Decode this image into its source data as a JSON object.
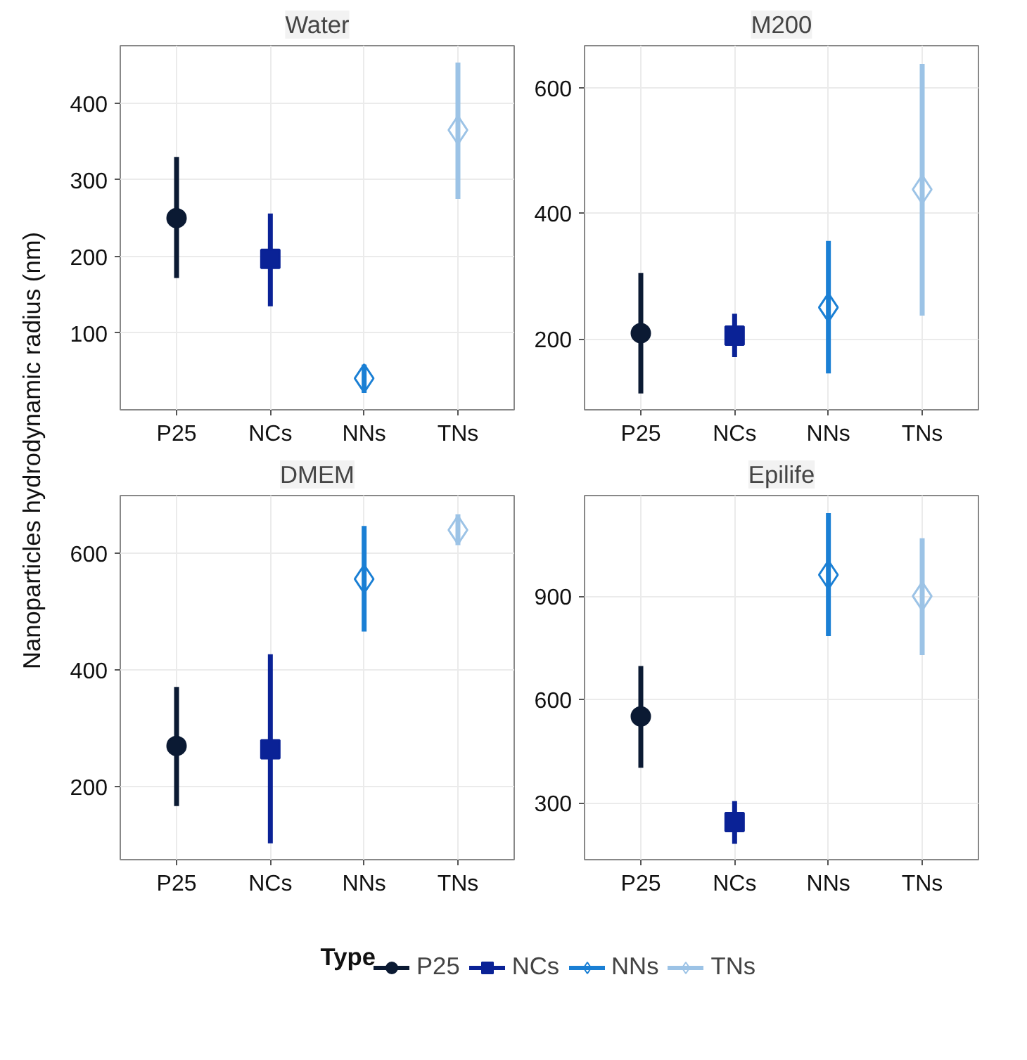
{
  "chart_data": [
    {
      "type": "scatter",
      "title": "Water",
      "ylabel": "Nanoparticles hydrodynamic radius (nm)",
      "legend_title": "Type",
      "legend": "bottom",
      "grid": true,
      "categories": [
        "P25",
        "NCs",
        "NNs",
        "TNs"
      ],
      "ylim": [
        0,
        475
      ],
      "yticks": [
        100,
        200,
        300,
        400
      ],
      "series": [
        {
          "name": "P25",
          "color": "#0b1a33",
          "marker": "circle",
          "values": [
            250,
            null,
            null,
            null
          ],
          "errors": [
            [
              172,
              330
            ],
            null,
            null,
            null
          ]
        },
        {
          "name": "NCs",
          "color": "#0a2296",
          "marker": "square",
          "values": [
            null,
            197,
            null,
            null
          ],
          "errors": [
            null,
            [
              135,
              256
            ],
            null,
            null
          ]
        },
        {
          "name": "NNs",
          "color": "#1a7fd4",
          "marker": "diamond",
          "values": [
            null,
            null,
            41,
            null
          ],
          "errors": [
            null,
            null,
            [
              22,
              59
            ],
            null
          ]
        },
        {
          "name": "TNs",
          "color": "#9cc3e6",
          "marker": "diamond",
          "values": [
            null,
            null,
            null,
            365
          ],
          "errors": [
            null,
            null,
            null,
            [
              275,
              453
            ]
          ]
        }
      ]
    },
    {
      "type": "scatter",
      "title": "M200",
      "grid": true,
      "categories": [
        "P25",
        "NCs",
        "NNs",
        "TNs"
      ],
      "ylim": [
        87,
        667
      ],
      "yticks": [
        200,
        400,
        600
      ],
      "series": [
        {
          "color": "#0b1a33",
          "marker": "circle",
          "values": [
            209,
            null,
            null,
            null
          ],
          "errors": [
            [
              113,
              305
            ],
            null,
            null,
            null
          ]
        },
        {
          "color": "#0a2296",
          "marker": "square",
          "values": [
            null,
            205,
            null,
            null
          ],
          "errors": [
            null,
            [
              171,
              240
            ],
            null,
            null
          ]
        },
        {
          "color": "#1a7fd4",
          "marker": "diamond",
          "values": [
            null,
            null,
            250,
            null
          ],
          "errors": [
            null,
            null,
            [
              145,
              356
            ],
            null
          ]
        },
        {
          "color": "#9cc3e6",
          "marker": "diamond",
          "values": [
            null,
            null,
            null,
            438
          ],
          "errors": [
            null,
            null,
            null,
            [
              237,
              638
            ]
          ]
        }
      ]
    },
    {
      "type": "scatter",
      "title": "DMEM",
      "grid": true,
      "categories": [
        "P25",
        "NCs",
        "NNs",
        "TNs"
      ],
      "ylim": [
        75,
        699
      ],
      "yticks": [
        200,
        400,
        600
      ],
      "series": [
        {
          "color": "#0b1a33",
          "marker": "circle",
          "values": [
            270,
            null,
            null,
            null
          ],
          "errors": [
            [
              167,
              371
            ],
            null,
            null,
            null
          ]
        },
        {
          "color": "#0a2296",
          "marker": "square",
          "values": [
            null,
            264,
            null,
            null
          ],
          "errors": [
            null,
            [
              103,
              427
            ],
            null,
            null
          ]
        },
        {
          "color": "#1a7fd4",
          "marker": "diamond",
          "values": [
            null,
            null,
            556,
            null
          ],
          "errors": [
            null,
            null,
            [
              466,
              647
            ],
            null
          ]
        },
        {
          "color": "#9cc3e6",
          "marker": "diamond",
          "values": [
            null,
            null,
            null,
            640
          ],
          "errors": [
            null,
            null,
            null,
            [
              614,
              667
            ]
          ]
        }
      ]
    },
    {
      "type": "scatter",
      "title": "Epilife",
      "grid": true,
      "categories": [
        "P25",
        "NCs",
        "NNs",
        "TNs"
      ],
      "ylim": [
        135,
        1192
      ],
      "yticks": [
        300,
        600,
        900
      ],
      "series": [
        {
          "color": "#0b1a33",
          "marker": "circle",
          "values": [
            551,
            null,
            null,
            null
          ],
          "errors": [
            [
              402,
              697
            ],
            null,
            null,
            null
          ]
        },
        {
          "color": "#0a2296",
          "marker": "square",
          "values": [
            null,
            244,
            null,
            null
          ],
          "errors": [
            null,
            [
              181,
              305
            ],
            null,
            null
          ]
        },
        {
          "color": "#1a7fd4",
          "marker": "diamond",
          "values": [
            null,
            null,
            962,
            null
          ],
          "errors": [
            null,
            null,
            [
              784,
              1141
            ],
            null
          ]
        },
        {
          "color": "#9cc3e6",
          "marker": "diamond",
          "values": [
            null,
            null,
            null,
            900
          ],
          "errors": [
            null,
            null,
            null,
            [
              729,
              1068
            ]
          ]
        }
      ]
    }
  ]
}
